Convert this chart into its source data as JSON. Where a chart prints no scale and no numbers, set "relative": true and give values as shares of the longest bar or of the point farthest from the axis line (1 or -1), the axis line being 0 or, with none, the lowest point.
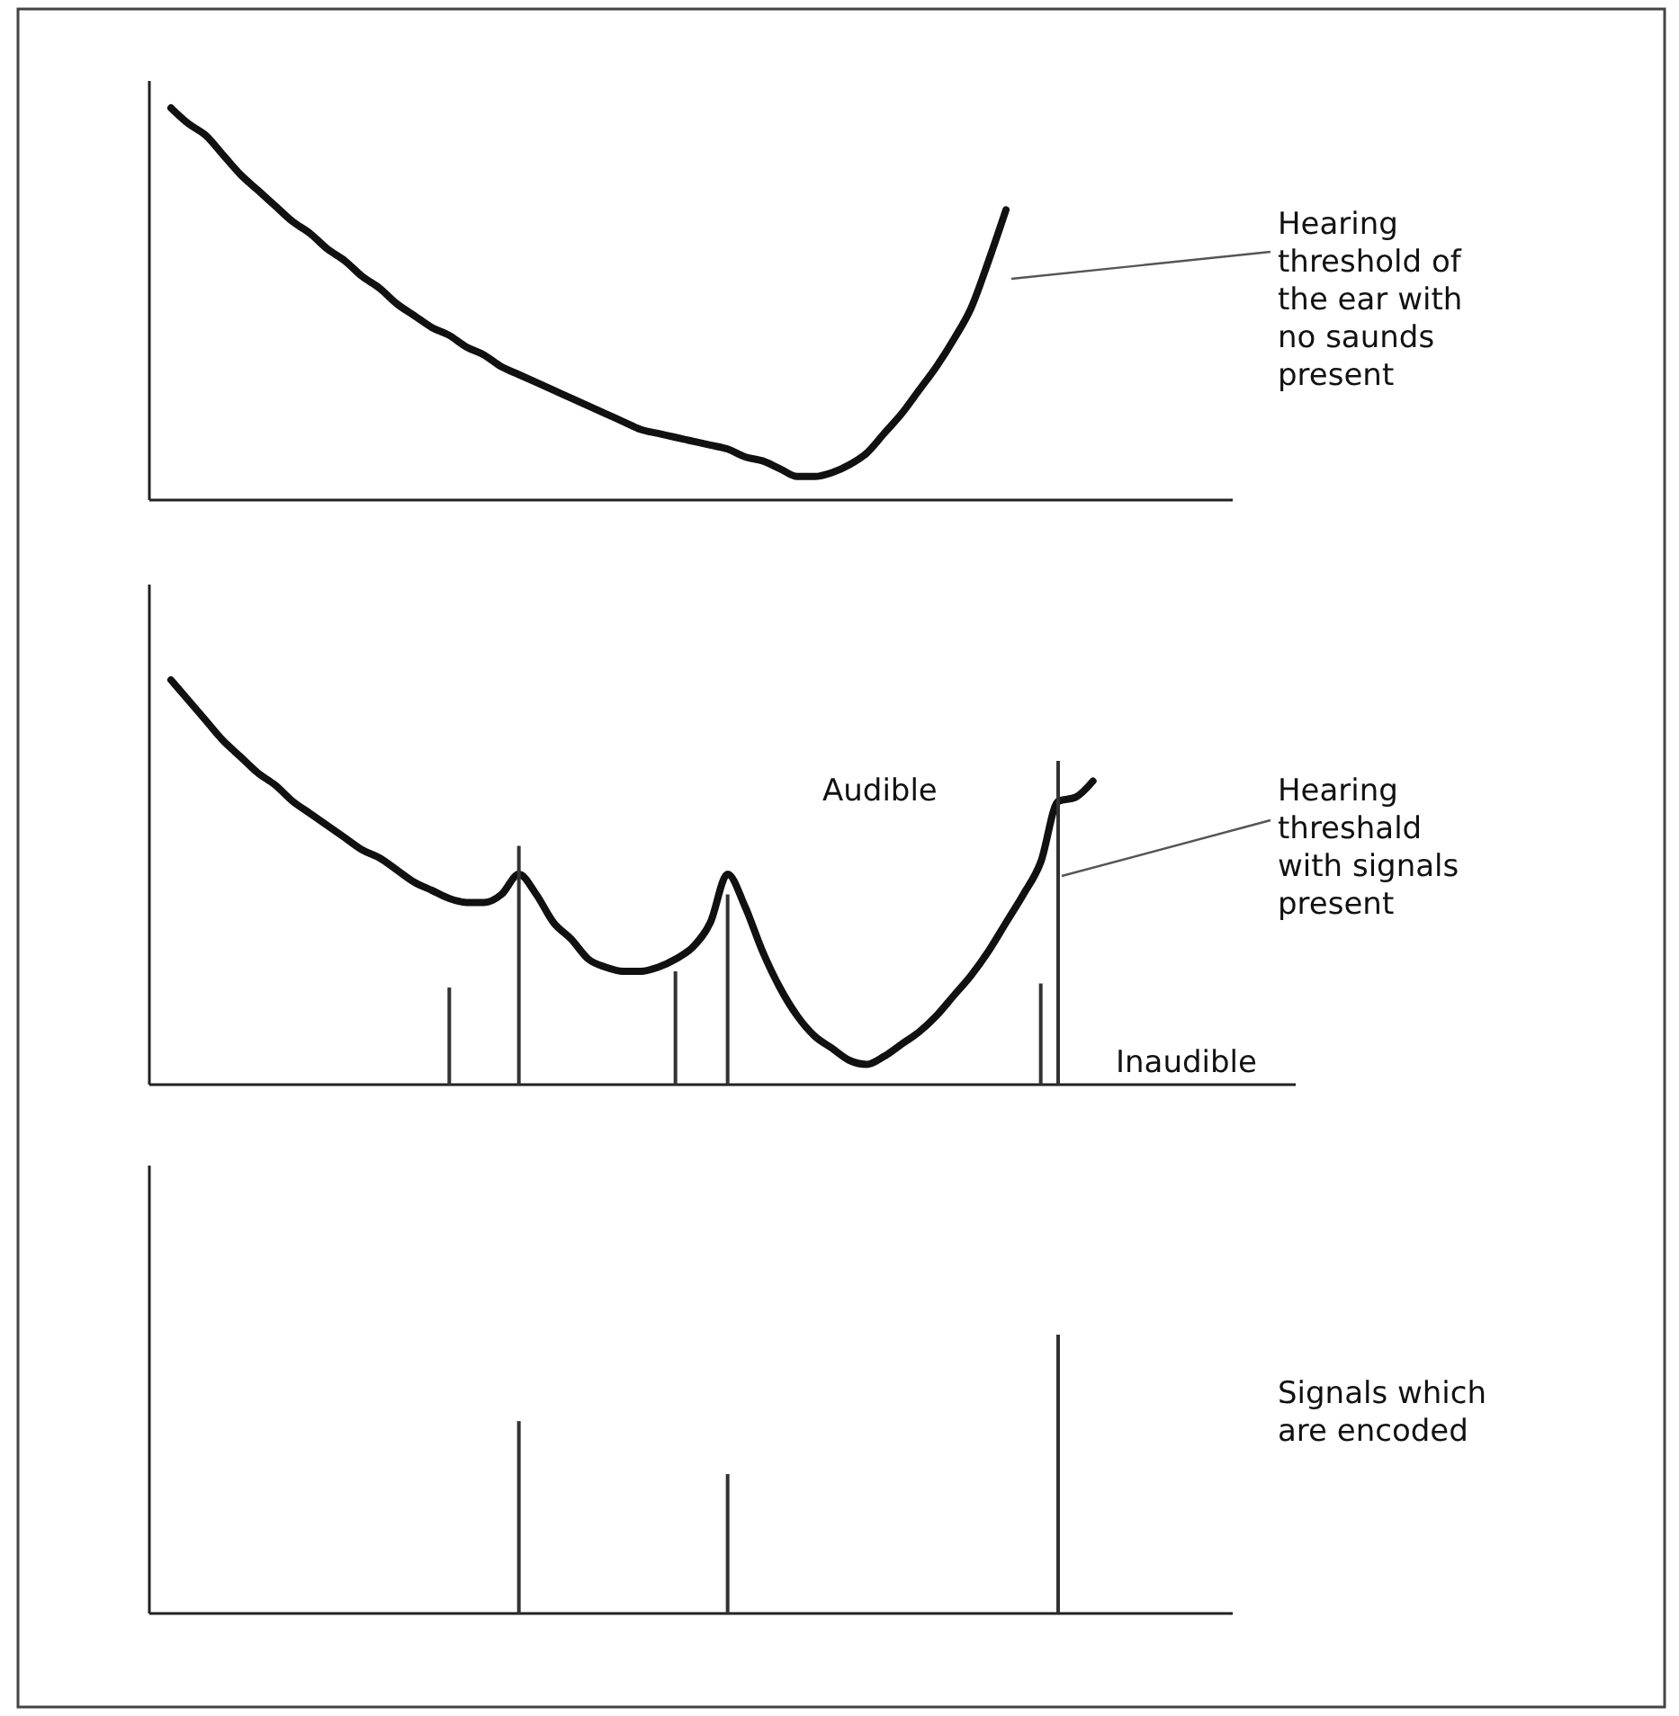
{
  "chart_data": [
    {
      "type": "line",
      "relative": true,
      "categories": [
        null,
        null,
        null,
        null,
        null,
        null,
        null,
        null,
        null,
        null,
        null,
        null,
        null,
        null,
        null,
        null,
        null,
        null,
        null,
        null,
        null,
        null,
        null,
        null,
        null,
        null,
        null,
        null,
        null,
        null,
        null,
        null,
        null,
        null,
        null,
        null,
        null,
        null,
        null,
        null,
        null,
        null,
        null,
        null,
        null,
        null,
        null,
        null,
        null,
        null,
        null,
        null,
        null,
        null,
        null,
        null,
        null,
        null,
        null,
        null,
        null
      ],
      "series": [
        {
          "color": "#111111",
          "values": [
            1.0,
            0.96,
            0.93,
            0.88,
            0.83,
            0.79,
            0.75,
            0.71,
            0.68,
            0.64,
            0.61,
            0.57,
            0.54,
            0.5,
            0.47,
            0.44,
            0.42,
            0.39,
            0.37,
            0.34,
            0.32,
            0.3,
            0.28,
            0.26,
            0.24,
            0.22,
            0.2,
            0.18,
            0.17,
            0.16,
            0.15,
            0.14,
            0.13,
            0.11,
            0.1,
            0.08,
            0.06,
            0.06,
            0.07,
            0.09,
            0.12,
            0.17,
            0.22,
            0.28,
            0.34,
            0.41,
            0.49,
            0.61,
            0.74,
            null,
            null,
            null,
            null,
            null,
            null,
            null,
            null,
            null,
            null,
            null,
            null
          ]
        }
      ],
      "annotations": [
        "Hearing threshold of the ear with no saunds present"
      ]
    },
    {
      "type": "line",
      "relative": true,
      "categories": [
        null,
        null,
        null,
        null,
        null,
        null,
        null,
        null,
        null,
        null,
        null,
        null,
        null,
        null,
        null,
        null,
        null,
        null,
        null,
        null,
        null,
        null,
        null,
        null,
        null,
        null,
        null,
        null,
        null,
        null,
        null,
        null,
        null,
        null,
        null,
        null,
        null,
        null,
        null,
        null,
        null,
        null,
        null,
        null,
        null,
        null,
        null,
        null,
        null,
        null,
        null,
        null,
        null,
        null,
        null,
        null,
        null,
        null,
        null,
        null,
        null
      ],
      "series": [
        {
          "color": "#111111",
          "values": [
            1.0,
            0.95,
            0.9,
            0.85,
            0.81,
            0.77,
            0.74,
            0.7,
            0.67,
            0.64,
            0.61,
            0.58,
            0.56,
            0.53,
            0.5,
            0.48,
            0.46,
            0.45,
            0.45,
            0.47,
            0.52,
            0.47,
            0.4,
            0.36,
            0.31,
            0.29,
            0.28,
            0.28,
            0.29,
            0.31,
            0.34,
            0.4,
            0.52,
            0.44,
            0.33,
            0.24,
            0.17,
            0.12,
            0.09,
            0.06,
            0.05,
            0.07,
            0.1,
            0.13,
            0.17,
            0.22,
            0.27,
            0.33,
            0.4,
            0.47,
            0.55,
            0.7,
            0.71,
            0.75,
            null,
            null,
            null,
            null,
            null,
            null,
            null
          ]
        },
        {
          "type": "bar",
          "color": "#333333",
          "values": [
            null,
            null,
            null,
            null,
            null,
            null,
            null,
            null,
            null,
            null,
            null,
            null,
            null,
            null,
            null,
            null,
            0.24,
            null,
            null,
            null,
            0.59,
            null,
            null,
            null,
            null,
            null,
            null,
            null,
            null,
            0.28,
            null,
            null,
            0.47,
            null,
            null,
            null,
            null,
            null,
            null,
            null,
            null,
            null,
            null,
            null,
            null,
            null,
            null,
            null,
            null,
            null,
            0.25,
            0.8,
            null,
            null,
            null,
            null,
            null,
            null,
            null,
            null,
            null
          ]
        }
      ],
      "annotations": [
        "Audible",
        "Hearing threshald with signals present",
        "Inaudible"
      ]
    },
    {
      "type": "bar",
      "relative": true,
      "categories": [
        null,
        null,
        null,
        null,
        null,
        null,
        null,
        null,
        null,
        null,
        null,
        null,
        null,
        null,
        null,
        null,
        null,
        null,
        null,
        null,
        null,
        null,
        null,
        null,
        null,
        null,
        null,
        null,
        null,
        null,
        null,
        null,
        null,
        null,
        null,
        null,
        null,
        null,
        null,
        null,
        null,
        null,
        null,
        null,
        null,
        null,
        null,
        null,
        null,
        null,
        null,
        null,
        null,
        null,
        null,
        null,
        null,
        null,
        null,
        null,
        null
      ],
      "series": [
        {
          "color": "#333333",
          "values": [
            null,
            null,
            null,
            null,
            null,
            null,
            null,
            null,
            null,
            null,
            null,
            null,
            null,
            null,
            null,
            null,
            null,
            null,
            null,
            null,
            0.69,
            null,
            null,
            null,
            null,
            null,
            null,
            null,
            null,
            null,
            null,
            null,
            0.5,
            null,
            null,
            null,
            null,
            null,
            null,
            null,
            null,
            null,
            null,
            null,
            null,
            null,
            null,
            null,
            null,
            null,
            null,
            1.0,
            null,
            null,
            null,
            null,
            null,
            null,
            null,
            null,
            null
          ]
        }
      ],
      "annotations": [
        "Signals which are encoded"
      ]
    }
  ]
}
